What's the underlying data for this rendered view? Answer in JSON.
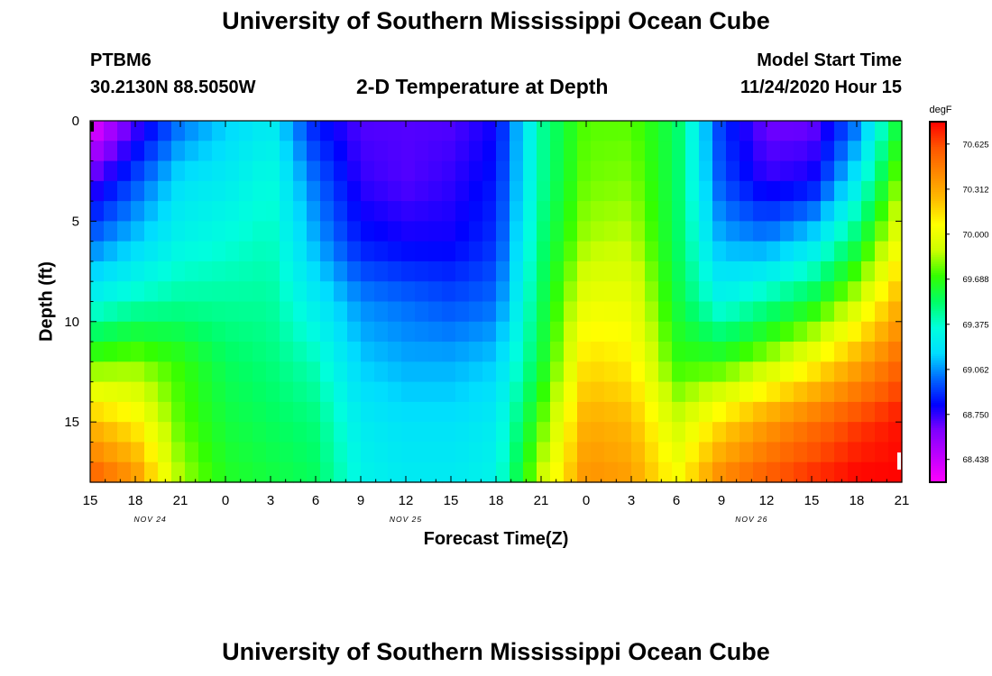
{
  "header": {
    "title_top": "University of Southern Mississippi Ocean Cube",
    "title_bottom": "University of Southern Mississippi Ocean Cube",
    "station": "PTBM6",
    "coords": "30.2130N 88.5050W",
    "subtitle": "2-D Temperature at Depth",
    "model_label": "Model Start Time",
    "model_time": "11/24/2020 Hour 15"
  },
  "chart_data": {
    "type": "heatmap",
    "title": "2-D Temperature at Depth",
    "xlabel": "Forecast Time(Z)",
    "ylabel": "Depth (ft)",
    "x_tick_labels": [
      "15",
      "18",
      "21",
      "0",
      "3",
      "6",
      "9",
      "12",
      "15",
      "18",
      "21",
      "0",
      "3",
      "6",
      "9",
      "12",
      "15",
      "18",
      "21"
    ],
    "x_hours": [
      0,
      3,
      6,
      9,
      12,
      15,
      18,
      21,
      24,
      27,
      30,
      33,
      36,
      39,
      42,
      45,
      48,
      51,
      54
    ],
    "xlim": [
      0,
      54
    ],
    "date_labels": [
      {
        "label": "NOV 24",
        "hour": 4
      },
      {
        "label": "NOV 25",
        "hour": 21
      },
      {
        "label": "NOV 26",
        "hour": 44
      }
    ],
    "y_ticks": [
      0,
      5,
      10,
      15
    ],
    "ylim": [
      0,
      18
    ],
    "y_inverted": true,
    "colorbar": {
      "unit": "degF",
      "range": [
        68.28,
        70.78
      ],
      "tick_labels": [
        "70.625",
        "70.312",
        "70.000",
        "69.688",
        "69.375",
        "69.062",
        "68.750",
        "68.438"
      ],
      "tick_values": [
        70.625,
        70.312,
        70.0,
        69.688,
        69.375,
        69.062,
        68.75,
        68.438
      ],
      "colors": [
        "#ff00ff",
        "#c000ff",
        "#8000ff",
        "#0000ff",
        "#0066ff",
        "#00ddff",
        "#00ffdd",
        "#00ff66",
        "#33ff00",
        "#ccff00",
        "#ffff00",
        "#ffbb00",
        "#ff8800",
        "#ff5500",
        "#ff0000"
      ]
    },
    "grid_hours": [
      0,
      3,
      6,
      9,
      12,
      15,
      18,
      21,
      24,
      27,
      30,
      33,
      36,
      39,
      42,
      45,
      48,
      51,
      54
    ],
    "grid_depths": [
      0,
      3,
      6,
      9,
      12,
      15,
      18
    ],
    "values": [
      [
        68.3,
        68.7,
        69.0,
        69.15,
        69.25,
        68.85,
        68.7,
        68.7,
        68.7,
        68.8,
        69.45,
        69.75,
        69.75,
        69.55,
        68.9,
        68.65,
        68.65,
        69.0,
        69.65
      ],
      [
        68.7,
        68.95,
        69.2,
        69.25,
        69.35,
        69.0,
        68.75,
        68.7,
        68.75,
        68.85,
        69.45,
        69.78,
        69.8,
        69.55,
        68.95,
        68.75,
        68.8,
        69.25,
        69.85
      ],
      [
        69.0,
        69.15,
        69.3,
        69.35,
        69.4,
        69.1,
        68.85,
        68.8,
        68.8,
        68.9,
        69.5,
        69.85,
        69.88,
        69.55,
        69.1,
        69.05,
        69.2,
        69.55,
        70.05
      ],
      [
        69.3,
        69.4,
        69.45,
        69.45,
        69.45,
        69.25,
        69.05,
        69.0,
        68.95,
        69.0,
        69.55,
        70.0,
        70.0,
        69.6,
        69.3,
        69.45,
        69.6,
        69.9,
        70.3
      ],
      [
        69.75,
        69.8,
        69.7,
        69.55,
        69.5,
        69.4,
        69.15,
        69.1,
        69.1,
        69.15,
        69.6,
        70.15,
        70.1,
        69.7,
        69.7,
        69.85,
        70.05,
        70.3,
        70.55
      ],
      [
        70.25,
        70.1,
        69.75,
        69.6,
        69.55,
        69.5,
        69.25,
        69.2,
        69.2,
        69.25,
        69.75,
        70.3,
        70.25,
        69.9,
        70.15,
        70.35,
        70.5,
        70.65,
        70.75
      ],
      [
        70.6,
        70.4,
        69.85,
        69.65,
        69.6,
        69.55,
        69.3,
        69.25,
        69.25,
        69.3,
        69.9,
        70.4,
        70.35,
        70.05,
        70.45,
        70.6,
        70.7,
        70.78,
        70.78
      ]
    ]
  },
  "icons": {
    "left_marker": "top-left-black-marker",
    "right_marker": "bottom-right-white-marker"
  }
}
